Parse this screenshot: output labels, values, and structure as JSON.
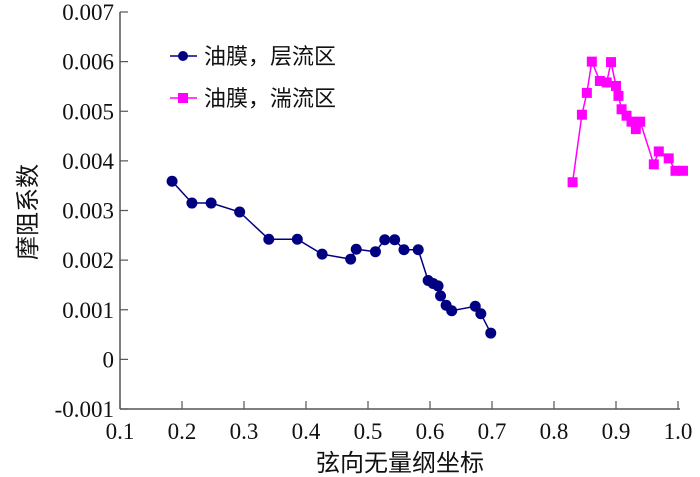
{
  "chart_data": {
    "type": "line",
    "xlabel": "弦向无量纲坐标",
    "ylabel": "摩阻系数",
    "xlim": [
      0.1,
      1.0
    ],
    "ylim": [
      -0.001,
      0.007
    ],
    "xticks": [
      "0.1",
      "0.2",
      "0.3",
      "0.4",
      "0.5",
      "0.6",
      "0.7",
      "0.8",
      "0.9",
      "1.0"
    ],
    "yticks": [
      "-0.001",
      "0",
      "0.001",
      "0.002",
      "0.003",
      "0.004",
      "0.005",
      "0.006",
      "0.007"
    ],
    "legend_position": "top-left",
    "series": [
      {
        "name": "油膜，层流区",
        "color": "#000080",
        "marker": "circle",
        "x": [
          0.184,
          0.216,
          0.247,
          0.293,
          0.34,
          0.386,
          0.426,
          0.472,
          0.481,
          0.512,
          0.527,
          0.543,
          0.558,
          0.581,
          0.597,
          0.605,
          0.613,
          0.617,
          0.626,
          0.635,
          0.673,
          0.682,
          0.698
        ],
        "y": [
          0.00359,
          0.00315,
          0.00315,
          0.00297,
          0.00242,
          0.00242,
          0.00212,
          0.00202,
          0.00222,
          0.00217,
          0.00241,
          0.00241,
          0.00221,
          0.00221,
          0.00159,
          0.00153,
          0.00148,
          0.00128,
          0.00109,
          0.00098,
          0.00107,
          0.00092,
          0.00053
        ]
      },
      {
        "name": "油膜，湍流区",
        "color": "#ff00ff",
        "marker": "square",
        "x": [
          0.83,
          0.845,
          0.853,
          0.861,
          0.874,
          0.885,
          0.892,
          0.9,
          0.904,
          0.909,
          0.917,
          0.925,
          0.932,
          0.939,
          0.961,
          0.969,
          0.985,
          0.996,
          1.008
        ],
        "y": [
          0.00357,
          0.00493,
          0.00537,
          0.006,
          0.00561,
          0.00558,
          0.00599,
          0.00551,
          0.00531,
          0.00504,
          0.00491,
          0.00479,
          0.00464,
          0.00479,
          0.00393,
          0.00419,
          0.00405,
          0.0038,
          0.0038
        ]
      }
    ]
  }
}
